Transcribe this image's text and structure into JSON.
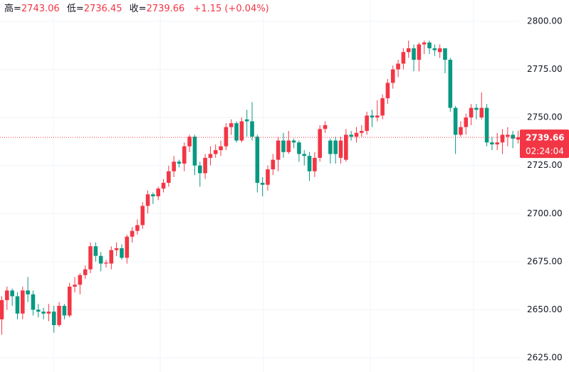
{
  "chart_data": {
    "type": "candlestick",
    "header": {
      "high_label": "高=",
      "high": "2743.06",
      "low_label": "低=",
      "low": "2736.45",
      "close_label": "收=",
      "close": "2739.66",
      "change": "+1.15 (+0.04%)"
    },
    "up_color": "#f23645",
    "down_color": "#089981",
    "open": [
      2645,
      2655,
      2660,
      2657,
      2648,
      2660,
      2658,
      2650,
      2649,
      2648,
      2649,
      2642,
      2652,
      2647,
      2662,
      2663,
      2668,
      2671,
      2683,
      2678,
      2674,
      2674,
      2681,
      2682,
      2677,
      2688,
      2691,
      2694,
      2704,
      2710,
      2709,
      2713,
      2716,
      2722,
      2727,
      2726,
      2735,
      2740,
      2725,
      2721,
      2729,
      2731,
      2733,
      2735,
      2745,
      2747,
      2738,
      2749,
      2748,
      2740,
      2716,
      2715,
      2723,
      2728,
      2738,
      2732,
      2738,
      2737,
      2731,
      2730,
      2722,
      2729,
      2744,
      2738,
      2738,
      2729,
      2728,
      2741,
      2740,
      2742,
      2743,
      2751,
      2750,
      2751,
      2760,
      2768,
      2775,
      2778,
      2784,
      2786,
      2780,
      2788,
      2789,
      2786,
      2784,
      2786,
      2780,
      2755,
      2741,
      2745,
      2750,
      2755,
      2750,
      2755,
      2737,
      2736,
      2737,
      2740,
      2741,
      2738.51
    ],
    "high": [
      2657,
      2662,
      2661,
      2659,
      2662,
      2667,
      2660,
      2653,
      2651,
      2653,
      2652,
      2654,
      2653,
      2664,
      2667,
      2669,
      2673,
      2685,
      2685,
      2680,
      2676,
      2683,
      2685,
      2684,
      2689,
      2693,
      2697,
      2706,
      2712,
      2711,
      2714,
      2718,
      2725,
      2730,
      2728,
      2737,
      2741,
      2741,
      2727,
      2731,
      2735,
      2736,
      2738,
      2747,
      2749,
      2748,
      2750,
      2754,
      2758,
      2741,
      2719,
      2725,
      2731,
      2740,
      2742,
      2743,
      2739,
      2738,
      2733,
      2732,
      2732,
      2746,
      2748,
      2739,
      2740,
      2740,
      2744,
      2743,
      2745,
      2746,
      2753,
      2754,
      2759,
      2762,
      2770,
      2777,
      2780,
      2786,
      2790,
      2788,
      2789,
      2790,
      2790,
      2788,
      2788,
      2786,
      2781,
      2756,
      2748,
      2752,
      2757,
      2757,
      2763,
      2757,
      2740,
      2742,
      2744,
      2745,
      2743,
      2743.06
    ],
    "low": [
      2637,
      2650,
      2652,
      2645,
      2645,
      2654,
      2647,
      2646,
      2645,
      2644,
      2638,
      2641,
      2645,
      2646,
      2659,
      2658,
      2666,
      2669,
      2675,
      2670,
      2672,
      2671,
      2678,
      2676,
      2674,
      2685,
      2689,
      2692,
      2700,
      2705,
      2707,
      2711,
      2714,
      2719,
      2724,
      2722,
      2732,
      2720,
      2714,
      2718,
      2725,
      2729,
      2730,
      2733,
      2741,
      2737,
      2737,
      2740,
      2738,
      2711,
      2709,
      2712,
      2720,
      2722,
      2729,
      2731,
      2734,
      2727,
      2725,
      2717,
      2719,
      2727,
      2742,
      2726,
      2726,
      2726,
      2727,
      2738,
      2737,
      2740,
      2741,
      2745,
      2748,
      2749,
      2757,
      2765,
      2771,
      2775,
      2781,
      2774,
      2774,
      2783,
      2783,
      2782,
      2781,
      2773,
      2753,
      2731,
      2740,
      2741,
      2746,
      2749,
      2749,
      2735,
      2733,
      2733,
      2731,
      2735,
      2734,
      2736.45
    ],
    "close": [
      2655,
      2660,
      2657,
      2648,
      2660,
      2658,
      2650,
      2649,
      2648,
      2649,
      2642,
      2652,
      2647,
      2662,
      2663,
      2668,
      2671,
      2683,
      2678,
      2674,
      2674.5,
      2681,
      2682,
      2677,
      2688,
      2691,
      2694,
      2704,
      2710,
      2709,
      2713,
      2716,
      2722,
      2727,
      2726,
      2735,
      2740,
      2725,
      2721,
      2729,
      2731,
      2733,
      2735,
      2745,
      2747,
      2738,
      2748,
      2748,
      2740,
      2716,
      2715,
      2723,
      2728,
      2738,
      2732,
      2738,
      2737,
      2731,
      2730,
      2722,
      2729,
      2744,
      2746,
      2731,
      2731,
      2738,
      2741,
      2740,
      2742,
      2743,
      2751,
      2750,
      2751,
      2760,
      2768,
      2775,
      2778,
      2784,
      2786,
      2780,
      2788,
      2789,
      2786,
      2785,
      2786,
      2780,
      2755,
      2741,
      2745,
      2750,
      2755,
      2754,
      2755,
      2737,
      2736,
      2737,
      2741,
      2741,
      2739,
      2739.66
    ],
    "ylim": [
      2617.6,
      2811.1
    ],
    "yticks": [
      {
        "value": 2625,
        "label": "2625.00"
      },
      {
        "value": 2650,
        "label": "2650.00"
      },
      {
        "value": 2675,
        "label": "2675.00"
      },
      {
        "value": 2700,
        "label": "2700.00"
      },
      {
        "value": 2725,
        "label": "2725.00"
      },
      {
        "value": 2750,
        "label": "2750.00"
      },
      {
        "value": 2775,
        "label": "2775.00"
      },
      {
        "value": 2800,
        "label": "2800.00"
      }
    ],
    "last_price": 2739.66,
    "countdown": "02:24:04",
    "grid": true
  }
}
